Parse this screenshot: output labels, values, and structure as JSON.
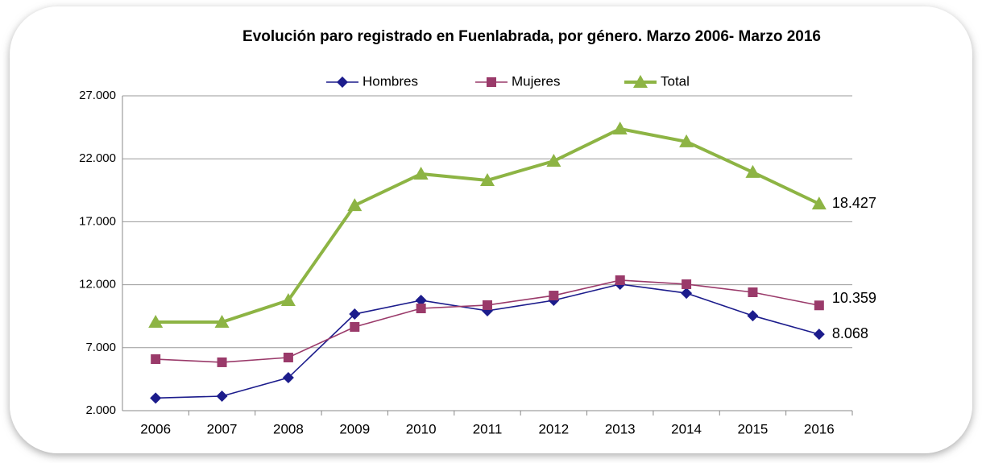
{
  "chart_data": {
    "type": "line",
    "title": "Evolución paro registrado en Fuenlabrada, por género. Marzo 2006- Marzo 2016",
    "categories": [
      "2006",
      "2007",
      "2008",
      "2009",
      "2010",
      "2011",
      "2012",
      "2013",
      "2014",
      "2015",
      "2016"
    ],
    "series": [
      {
        "name": "Hombres",
        "color": "#1c1c8c",
        "marker": "diamond",
        "values": [
          3000,
          3150,
          4620,
          9670,
          10760,
          9930,
          10760,
          12040,
          11330,
          9540,
          8068
        ],
        "value_labels": [
          null,
          null,
          null,
          null,
          null,
          null,
          null,
          null,
          null,
          null,
          "8.068"
        ]
      },
      {
        "name": "Mujeres",
        "color": "#9a3a6a",
        "marker": "square",
        "values": [
          6090,
          5840,
          6220,
          8650,
          10120,
          10380,
          11140,
          12360,
          12040,
          11400,
          10359
        ],
        "value_labels": [
          null,
          null,
          null,
          null,
          null,
          null,
          null,
          null,
          null,
          null,
          "10.359"
        ]
      },
      {
        "name": "Total",
        "color": "#8db444",
        "marker": "triangle",
        "values": [
          9030,
          9030,
          10760,
          18300,
          20800,
          20290,
          21820,
          24380,
          23360,
          20930,
          18427
        ],
        "value_labels": [
          null,
          null,
          null,
          null,
          null,
          null,
          null,
          null,
          null,
          null,
          "18.427"
        ]
      }
    ],
    "ylim": [
      2000,
      27000
    ],
    "yticks": [
      {
        "value": 2000,
        "label": "2.000"
      },
      {
        "value": 7000,
        "label": "7.000"
      },
      {
        "value": 12000,
        "label": "12.000"
      },
      {
        "value": 17000,
        "label": "17.000"
      },
      {
        "value": 22000,
        "label": "22.000"
      },
      {
        "value": 27000,
        "label": "27.000"
      }
    ],
    "grid": true,
    "legend": "top"
  }
}
